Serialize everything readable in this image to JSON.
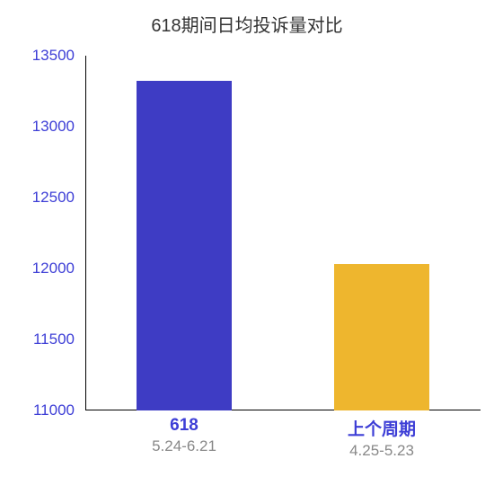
{
  "chart": {
    "type": "bar",
    "title": "618期间日均投诉量对比",
    "title_fontsize": 20,
    "title_color": "#333333",
    "background_color": "#ffffff",
    "ylim": [
      11000,
      13500
    ],
    "ytick_step": 500,
    "yticks": [
      11000,
      11500,
      12000,
      12500,
      13000,
      13500
    ],
    "ytick_fontsize": 17,
    "ytick_color": "#3d3ed6",
    "axis_line_color": "#000000",
    "axis_line_width": 1,
    "bars": [
      {
        "label_primary": "618",
        "label_secondary": "5.24-6.21",
        "value": 13320,
        "color": "#3e3cc4",
        "center_frac": 0.25,
        "width_frac": 0.24
      },
      {
        "label_primary": "上个周期",
        "label_secondary": "4.25-5.23",
        "value": 12030,
        "color": "#eeb62e",
        "center_frac": 0.75,
        "width_frac": 0.24
      }
    ],
    "xlabel_primary_fontsize": 19,
    "xlabel_primary_color": "#3d3ed6",
    "xlabel_secondary_fontsize": 17,
    "xlabel_secondary_color": "#888888"
  }
}
